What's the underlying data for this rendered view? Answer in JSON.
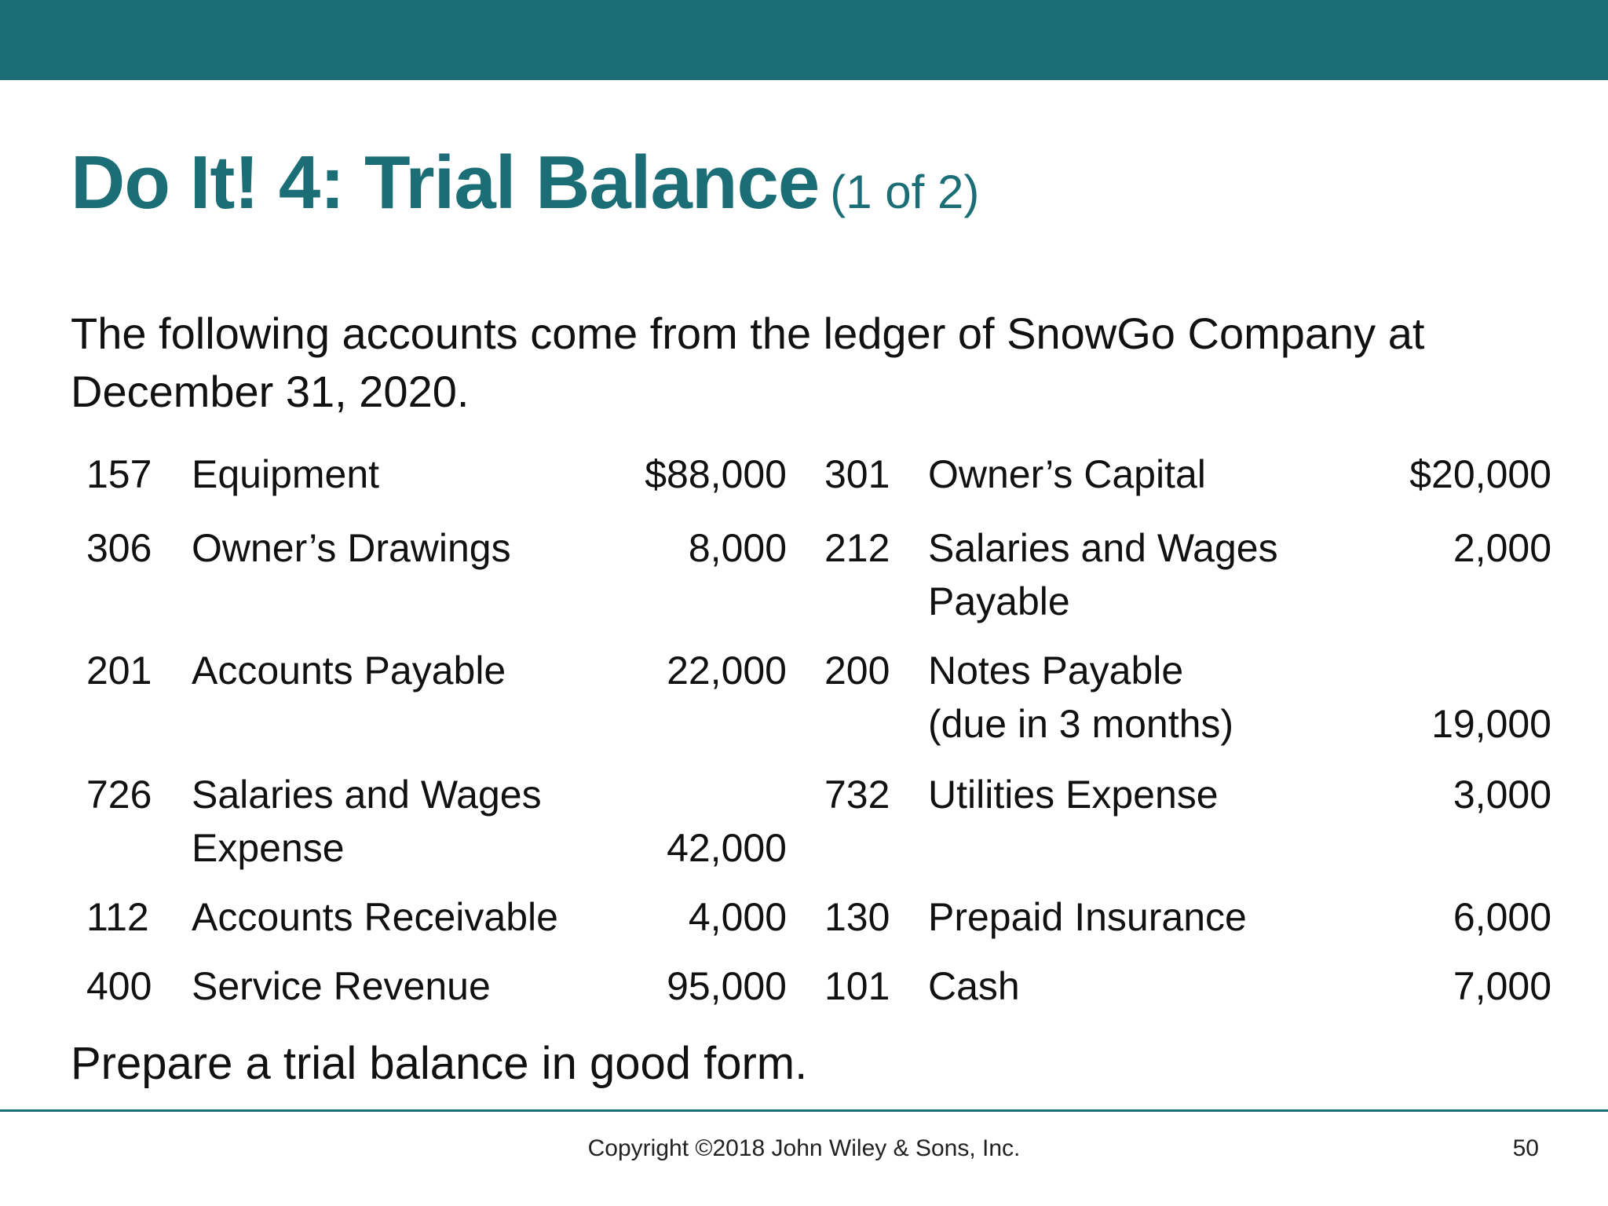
{
  "colors": {
    "accent": "#1c6e76",
    "text": "#111111"
  },
  "title": {
    "main": "Do It! 4: Trial Balance",
    "sub": "(1 of 2)"
  },
  "intro": "The following accounts come from the ledger of SnowGo Company at December 31, 2020.",
  "accounts_left": [
    {
      "number": "157",
      "name_lines": [
        "Equipment"
      ],
      "amount": "$88,000"
    },
    {
      "number": "306",
      "name_lines": [
        "Owner’s Drawings"
      ],
      "amount": "8,000"
    },
    {
      "number": "201",
      "name_lines": [
        "Accounts Payable"
      ],
      "amount": "22,000"
    },
    {
      "number": "726",
      "name_lines": [
        "Salaries and Wages",
        "Expense"
      ],
      "amount": "42,000"
    },
    {
      "number": "112",
      "name_lines": [
        "Accounts Receivable"
      ],
      "amount": "4,000"
    },
    {
      "number": "400",
      "name_lines": [
        "Service Revenue"
      ],
      "amount": "95,000"
    }
  ],
  "accounts_right": [
    {
      "number": "301",
      "name_lines": [
        "Owner’s Capital"
      ],
      "amount": "$20,000"
    },
    {
      "number": "212",
      "name_lines": [
        "Salaries and Wages",
        "Payable"
      ],
      "amount": "2,000"
    },
    {
      "number": "200",
      "name_lines": [
        "Notes Payable",
        "(due in 3 months)"
      ],
      "amount": "19,000"
    },
    {
      "number": "732",
      "name_lines": [
        "Utilities Expense"
      ],
      "amount": "3,000"
    },
    {
      "number": "130",
      "name_lines": [
        "Prepaid Insurance"
      ],
      "amount": "6,000"
    },
    {
      "number": "101",
      "name_lines": [
        "Cash"
      ],
      "amount": "7,000"
    }
  ],
  "prompt": "Prepare a trial balance in good form.",
  "footer": {
    "copyright": "Copyright ©2018 John Wiley & Sons, Inc.",
    "page_number": "50"
  }
}
